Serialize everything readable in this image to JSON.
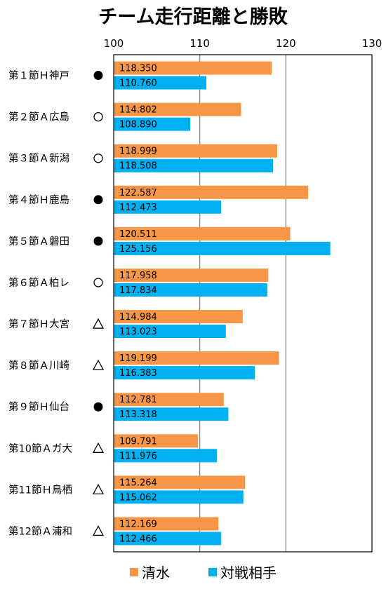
{
  "chart_data": {
    "type": "bar",
    "orientation": "horizontal",
    "title": "チーム走行距離と勝敗",
    "xlim": [
      100,
      130
    ],
    "x_ticks": [
      "100",
      "110",
      "120",
      "130"
    ],
    "grid": true,
    "legend_position": "bottom",
    "categories": [
      "第１節Ｈ神戸",
      "第２節Ａ広島",
      "第３節Ａ新潟",
      "第４節Ｈ鹿島",
      "第５節Ａ磐田",
      "第６節Ａ柏レ",
      "第７節Ｈ大宮",
      "第８節Ａ川崎",
      "第９節Ｈ仙台",
      "第10節Ａガ大",
      "第11節Ｈ鳥栖",
      "第12節Ａ浦和"
    ],
    "results": [
      "●",
      "○",
      "○",
      "●",
      "●",
      "○",
      "△",
      "△",
      "●",
      "△",
      "△",
      "△"
    ],
    "series": [
      {
        "name": "清水",
        "color": "#f79646",
        "values": [
          118.35,
          114.802,
          118.999,
          122.587,
          120.511,
          117.958,
          114.984,
          119.199,
          112.781,
          109.791,
          115.264,
          112.169
        ],
        "labels": [
          "118.350",
          "114.802",
          "118.999",
          "122.587",
          "120.511",
          "117.958",
          "114.984",
          "119.199",
          "112.781",
          "109.791",
          "115.264",
          "112.169"
        ]
      },
      {
        "name": "対戦相手",
        "color": "#00b0f0",
        "values": [
          110.76,
          108.89,
          118.508,
          112.473,
          125.156,
          117.834,
          113.023,
          116.383,
          113.318,
          111.976,
          115.062,
          112.466
        ],
        "labels": [
          "110.760",
          "108.890",
          "118.508",
          "112.473",
          "125.156",
          "117.834",
          "113.023",
          "116.383",
          "113.318",
          "111.976",
          "115.062",
          "112.466"
        ]
      }
    ]
  }
}
